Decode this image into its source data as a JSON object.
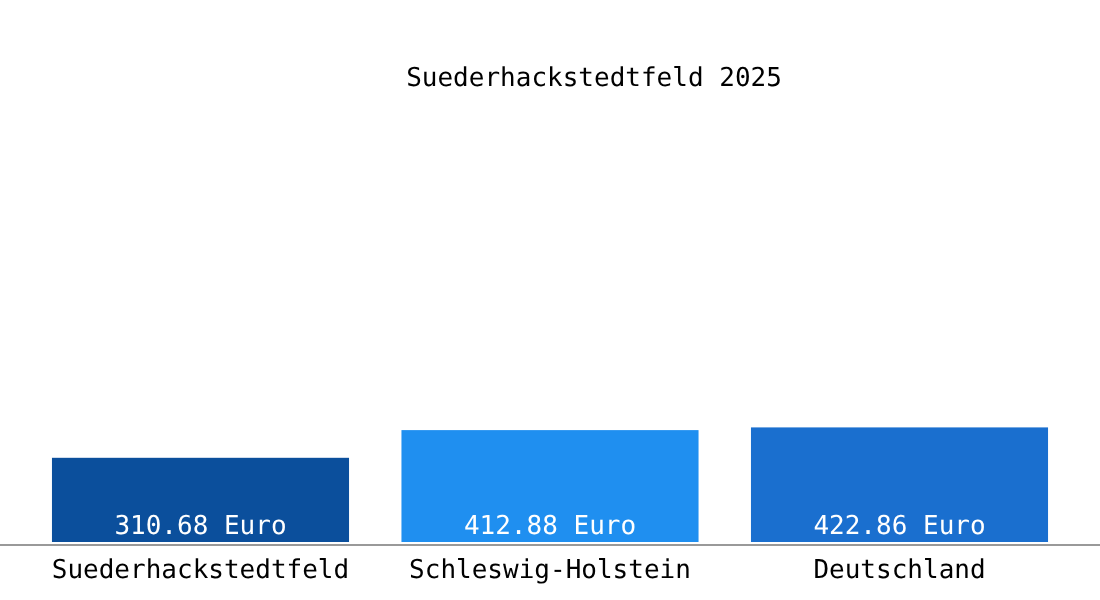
{
  "chart_data": {
    "type": "bar",
    "title": "Suederhackstedtfeld 2025",
    "categories": [
      "Suederhackstedtfeld",
      "Schleswig-Holstein",
      "Deutschland"
    ],
    "values": [
      310.68,
      412.88,
      422.86
    ],
    "colors": [
      "#0b4f9c",
      "#1f8ff0",
      "#1a6fcf"
    ],
    "value_labels": [
      "310.68 Euro",
      "412.88 Euro",
      "422.86 Euro"
    ],
    "ylim": [
      0,
      2000
    ],
    "tick_labels": "x"
  }
}
